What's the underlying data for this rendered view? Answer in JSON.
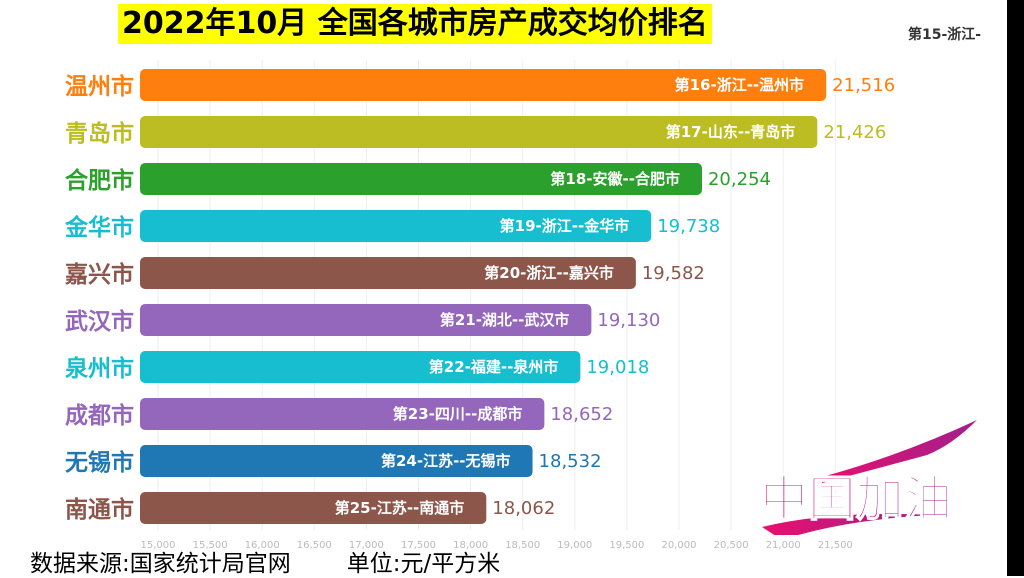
{
  "title": "2022年10月 全国各城市房产成交均价排名",
  "corner_label": "第15-浙江-",
  "footer": {
    "source": "数据来源:国家统计局官网",
    "unit": "单位:元/平方米"
  },
  "watermark": "中国加油",
  "chart_data": {
    "type": "bar",
    "orientation": "horizontal",
    "title": "2022年10月 全国各城市房产成交均价排名",
    "categories": [
      "温州市",
      "青岛市",
      "合肥市",
      "金华市",
      "嘉兴市",
      "武汉市",
      "泉州市",
      "成都市",
      "无锡市",
      "南通市"
    ],
    "bar_labels": [
      "第16-浙江--温州市",
      "第17-山东--青岛市",
      "第18-安徽--合肥市",
      "第19-浙江--金华市",
      "第20-浙江--嘉兴市",
      "第21-湖北--武汉市",
      "第22-福建--泉州市",
      "第23-四川--成都市",
      "第24-江苏--无锡市",
      "第25-江苏--南通市"
    ],
    "values": [
      21516,
      21426,
      20254,
      19738,
      19582,
      19130,
      19018,
      18652,
      18532,
      18062
    ],
    "value_labels": [
      "21,516",
      "21,426",
      "20,254",
      "19,738",
      "19,582",
      "19,130",
      "19,018",
      "18,652",
      "18,532",
      "18,062"
    ],
    "colors": [
      "#ff7f0e",
      "#bcbd22",
      "#2ca02c",
      "#17becf",
      "#8c564b",
      "#9467bd",
      "#17becf",
      "#9467bd",
      "#1f77b4",
      "#8c564b"
    ],
    "xticks": [
      "15,000",
      "15,500",
      "16,000",
      "16,500",
      "17,000",
      "17,500",
      "18,000",
      "18,500",
      "19,000",
      "19,500",
      "20,000",
      "20,500",
      "21,000",
      "21,500"
    ],
    "grid": true
  }
}
